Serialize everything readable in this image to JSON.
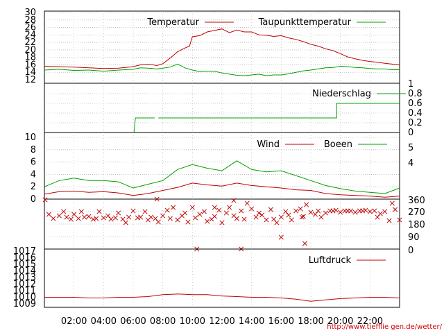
{
  "credit": "http://www.tiefflie gen.de/wetter/",
  "colors": {
    "red": "#c00000",
    "green": "#00a000",
    "grid": "#a0a0a0"
  },
  "time_labels": [
    "02:00",
    "04:00",
    "06:00",
    "08:00",
    "10:00",
    "12:00",
    "14:00",
    "16:00",
    "18:00",
    "20:00",
    "22:00"
  ],
  "chart_data": [
    {
      "id": "temperature",
      "type": "line",
      "ylim": [
        12,
        30
      ],
      "yticks": [
        12,
        14,
        16,
        18,
        20,
        22,
        24,
        26,
        28,
        30
      ],
      "series": [
        {
          "name": "Temperatur",
          "color": "#c00000",
          "x": [
            0,
            1,
            2,
            3,
            4,
            5,
            6,
            6.5,
            7,
            7.3,
            7.6,
            8,
            8.5,
            9,
            9.5,
            9.8,
            10,
            10.5,
            11,
            11.5,
            12,
            12.5,
            13,
            13.5,
            14,
            14.5,
            15,
            15.5,
            16,
            16.5,
            17,
            17.5,
            18,
            18.5,
            19,
            19.5,
            20,
            20.5,
            21,
            21.5,
            22,
            22.5,
            23,
            23.5,
            24
          ],
          "y": [
            15.6,
            15.5,
            15.4,
            15.2,
            15.0,
            15.1,
            15.5,
            16.0,
            16.1,
            16.0,
            15.8,
            16.3,
            17.8,
            19.5,
            20.5,
            21.0,
            23.5,
            23.8,
            24.8,
            25.2,
            25.6,
            24.6,
            25.3,
            24.8,
            24.8,
            24.0,
            23.9,
            23.6,
            23.8,
            23.2,
            22.8,
            22.2,
            21.5,
            21.0,
            20.3,
            19.8,
            19.0,
            18.1,
            17.6,
            17.2,
            16.9,
            16.7,
            16.4,
            16.2,
            16.0
          ]
        },
        {
          "name": "Taupunkttemperatur",
          "color": "#00a000",
          "x": [
            0,
            1,
            2,
            3,
            4,
            5,
            6,
            6.5,
            7,
            7.3,
            7.6,
            8,
            8.5,
            9,
            9.5,
            10,
            10.5,
            11,
            11.5,
            12,
            12.5,
            13,
            13.5,
            14,
            14.5,
            15,
            15.5,
            16,
            16.5,
            17,
            17.5,
            18,
            18.5,
            19,
            19.5,
            20,
            20.5,
            21,
            21.5,
            22,
            22.5,
            23,
            23.5,
            24
          ],
          "y": [
            14.6,
            14.8,
            14.5,
            14.6,
            14.3,
            14.6,
            14.8,
            15.2,
            15.1,
            15.0,
            14.9,
            15.1,
            15.4,
            16.2,
            15.2,
            14.6,
            14.2,
            14.3,
            14.3,
            13.8,
            13.5,
            13.2,
            13.1,
            13.3,
            13.5,
            13.1,
            13.3,
            13.3,
            13.6,
            14.0,
            14.4,
            14.6,
            14.9,
            15.2,
            15.3,
            15.6,
            15.5,
            15.3,
            15.2,
            15.0,
            14.9,
            14.9,
            14.7,
            14.7
          ]
        }
      ]
    },
    {
      "id": "precipitation",
      "type": "line",
      "ylim": [
        0,
        1
      ],
      "yticks": [
        0,
        0.2,
        0.4,
        0.6,
        0.8,
        1
      ],
      "series": [
        {
          "name": "Niederschlag",
          "color": "#00a000",
          "x": [
            6.05,
            6.15,
            6.2,
            7.45,
            null,
            7.7,
            19.75,
            19.75,
            24
          ],
          "y": [
            0,
            0.3,
            0.3,
            0.3,
            null,
            0.3,
            0.3,
            0.6,
            0.6
          ]
        }
      ]
    },
    {
      "id": "wind",
      "type": "line",
      "ylim": [
        0,
        10
      ],
      "yticks": [
        0,
        2,
        4,
        6,
        8,
        10
      ],
      "right_ticks": [
        "4",
        "5"
      ],
      "series": [
        {
          "name": "Wind",
          "color": "#c00000",
          "x": [
            0,
            1,
            2,
            3,
            4,
            5,
            6,
            7,
            8,
            9,
            10,
            11,
            12,
            13,
            14,
            15,
            16,
            17,
            18,
            19,
            20,
            21,
            22,
            23,
            24
          ],
          "y": [
            0.8,
            1.2,
            1.3,
            1.1,
            1.2,
            1.0,
            0.6,
            0.9,
            1.4,
            1.9,
            2.6,
            2.3,
            2.1,
            2.6,
            2.2,
            2.0,
            1.8,
            1.5,
            1.4,
            0.9,
            0.7,
            0.6,
            0.5,
            0.3,
            0.5
          ]
        },
        {
          "name": "Boeen",
          "color": "#00a000",
          "x": [
            0,
            1,
            2,
            3,
            4,
            5,
            6,
            7,
            8,
            9,
            10,
            11,
            12,
            13,
            14,
            15,
            16,
            17,
            18,
            19,
            20,
            21,
            22,
            23,
            24
          ],
          "y": [
            2.0,
            3.0,
            3.4,
            3.0,
            3.0,
            2.8,
            1.8,
            2.4,
            3.0,
            4.8,
            5.6,
            5.0,
            4.6,
            6.2,
            4.8,
            4.4,
            4.6,
            3.8,
            3.0,
            2.2,
            1.7,
            1.3,
            1.1,
            0.9,
            1.8
          ]
        }
      ]
    },
    {
      "id": "wind_direction",
      "type": "scatter",
      "ylim": [
        0,
        360
      ],
      "right_ticks": [
        "0",
        "90",
        "180",
        "270",
        "360"
      ],
      "series": [
        {
          "name": "",
          "color": "#c00000",
          "x": [
            0.05,
            0.3,
            0.6,
            1.0,
            1.3,
            1.5,
            1.8,
            2.0,
            2.3,
            2.5,
            2.7,
            3.0,
            3.3,
            3.5,
            3.7,
            4.0,
            4.3,
            4.5,
            4.8,
            5.0,
            5.3,
            5.5,
            5.7,
            6.0,
            6.3,
            6.5,
            6.8,
            7.0,
            7.2,
            7.5,
            7.7,
            8.0,
            8.3,
            8.5,
            8.7,
            9.0,
            9.3,
            9.5,
            9.7,
            10.0,
            10.2,
            10.5,
            10.8,
            11.0,
            11.3,
            11.5,
            11.8,
            12.0,
            12.3,
            12.5,
            12.8,
            13.0,
            13.3,
            13.5,
            13.7,
            14.0,
            14.3,
            14.5,
            14.7,
            15.0,
            15.3,
            15.5,
            15.7,
            16.0,
            16.3,
            16.5,
            16.7,
            17.0,
            17.3,
            17.5,
            17.7,
            18.0,
            18.3,
            18.5,
            18.7,
            19.0,
            19.3,
            19.5,
            19.7,
            20.0,
            20.3,
            20.5,
            20.7,
            21.0,
            21.3,
            21.5,
            21.7,
            22.0,
            22.3,
            22.5,
            22.7,
            23.0,
            23.3,
            23.5,
            23.7,
            24.0,
            10.3,
            13.3,
            16.0,
            17.6,
            11.5,
            12.8,
            7.6,
            17.4
          ],
          "y": [
            355,
            250,
            220,
            240,
            270,
            230,
            215,
            250,
            220,
            270,
            230,
            235,
            215,
            220,
            270,
            225,
            240,
            215,
            225,
            260,
            215,
            190,
            230,
            275,
            225,
            230,
            270,
            210,
            230,
            220,
            195,
            240,
            280,
            220,
            300,
            210,
            240,
            260,
            195,
            300,
            225,
            250,
            270,
            200,
            215,
            235,
            280,
            190,
            260,
            300,
            240,
            220,
            275,
            215,
            330,
            290,
            230,
            260,
            245,
            210,
            285,
            215,
            190,
            230,
            270,
            245,
            210,
            275,
            290,
            235,
            320,
            265,
            250,
            275,
            230,
            260,
            275,
            275,
            280,
            265,
            275,
            275,
            275,
            265,
            275,
            275,
            280,
            270,
            275,
            230,
            255,
            270,
            205,
            330,
            285,
            210,
            0,
            0,
            85,
            40,
            300,
            350,
            360,
            230
          ]
        }
      ]
    },
    {
      "id": "pressure",
      "type": "line",
      "ylim": [
        1009,
        1017
      ],
      "yticks": [
        1009,
        1010,
        1011,
        1012,
        1013,
        1014,
        1015,
        1016,
        1017
      ],
      "series": [
        {
          "name": "Luftdruck",
          "color": "#c00000",
          "x": [
            0,
            1,
            2,
            3,
            4,
            5,
            6,
            7,
            8,
            9,
            10,
            11,
            12,
            13,
            14,
            15,
            16,
            17,
            18,
            19,
            20,
            21,
            22,
            23,
            24
          ],
          "y": [
            1010.0,
            1010.0,
            1010.0,
            1009.9,
            1009.9,
            1010.0,
            1010.0,
            1010.1,
            1010.4,
            1010.5,
            1010.4,
            1010.4,
            1010.2,
            1010.1,
            1010.0,
            1010.0,
            1009.9,
            1009.7,
            1009.4,
            1009.6,
            1009.8,
            1009.9,
            1010.0,
            1010.0,
            1009.9
          ]
        }
      ]
    }
  ]
}
